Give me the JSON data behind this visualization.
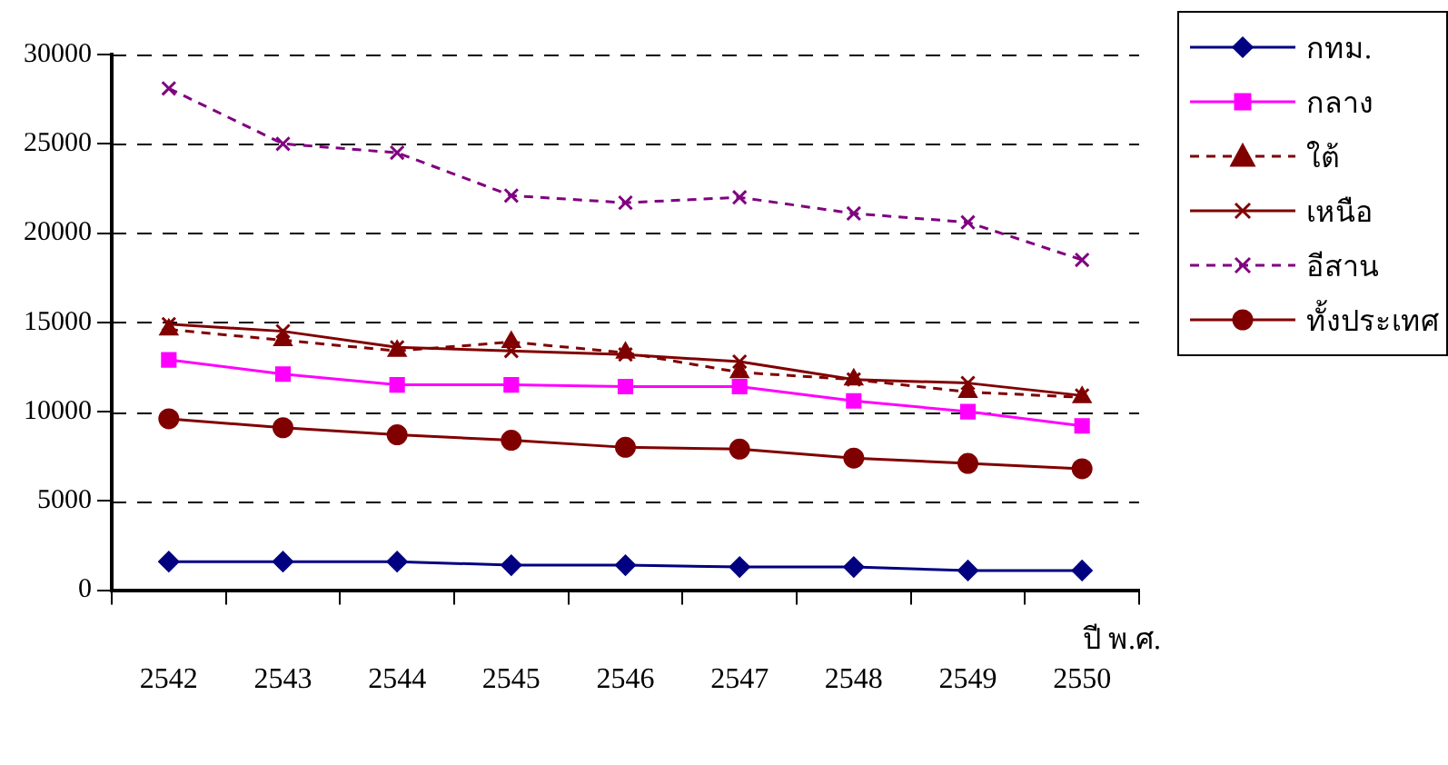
{
  "chart_data": {
    "type": "line",
    "xlabel": "ปี พ.ศ.",
    "categories": [
      "2542",
      "2543",
      "2544",
      "2545",
      "2546",
      "2547",
      "2548",
      "2549",
      "2550"
    ],
    "ylim": [
      0,
      30000
    ],
    "yticks": [
      0,
      5000,
      10000,
      15000,
      20000,
      25000,
      30000
    ],
    "grid": "y",
    "legend": "right",
    "series": [
      {
        "name": "กทม.",
        "color": "#000080",
        "marker": "diamond",
        "line_style": "solid",
        "values": [
          1600,
          1600,
          1600,
          1400,
          1400,
          1300,
          1300,
          1100,
          1100
        ]
      },
      {
        "name": "กลาง",
        "color": "#ff00ff",
        "marker": "square",
        "line_style": "solid",
        "values": [
          12900,
          12100,
          11500,
          11500,
          11400,
          11400,
          10600,
          10000,
          9200
        ]
      },
      {
        "name": "ใต้",
        "color": "#800000",
        "marker": "triangle",
        "line_style": "dashed",
        "values": [
          14600,
          14000,
          13400,
          13900,
          13300,
          12200,
          11800,
          11100,
          10800
        ]
      },
      {
        "name": "เหนือ",
        "color": "#800000",
        "marker": "cross",
        "line_style": "solid",
        "values": [
          14900,
          14500,
          13600,
          13400,
          13200,
          12800,
          11800,
          11600,
          10900
        ]
      },
      {
        "name": "อีสาน",
        "color": "#800080",
        "marker": "cross",
        "line_style": "dashed",
        "values": [
          28100,
          25000,
          24500,
          22100,
          21700,
          22000,
          21100,
          20600,
          18500
        ]
      },
      {
        "name": "ทั้งประเทศ",
        "color": "#800000",
        "marker": "circle",
        "line_style": "solid",
        "values": [
          9600,
          9100,
          8700,
          8400,
          8000,
          7900,
          7400,
          7100,
          6800
        ]
      }
    ]
  }
}
